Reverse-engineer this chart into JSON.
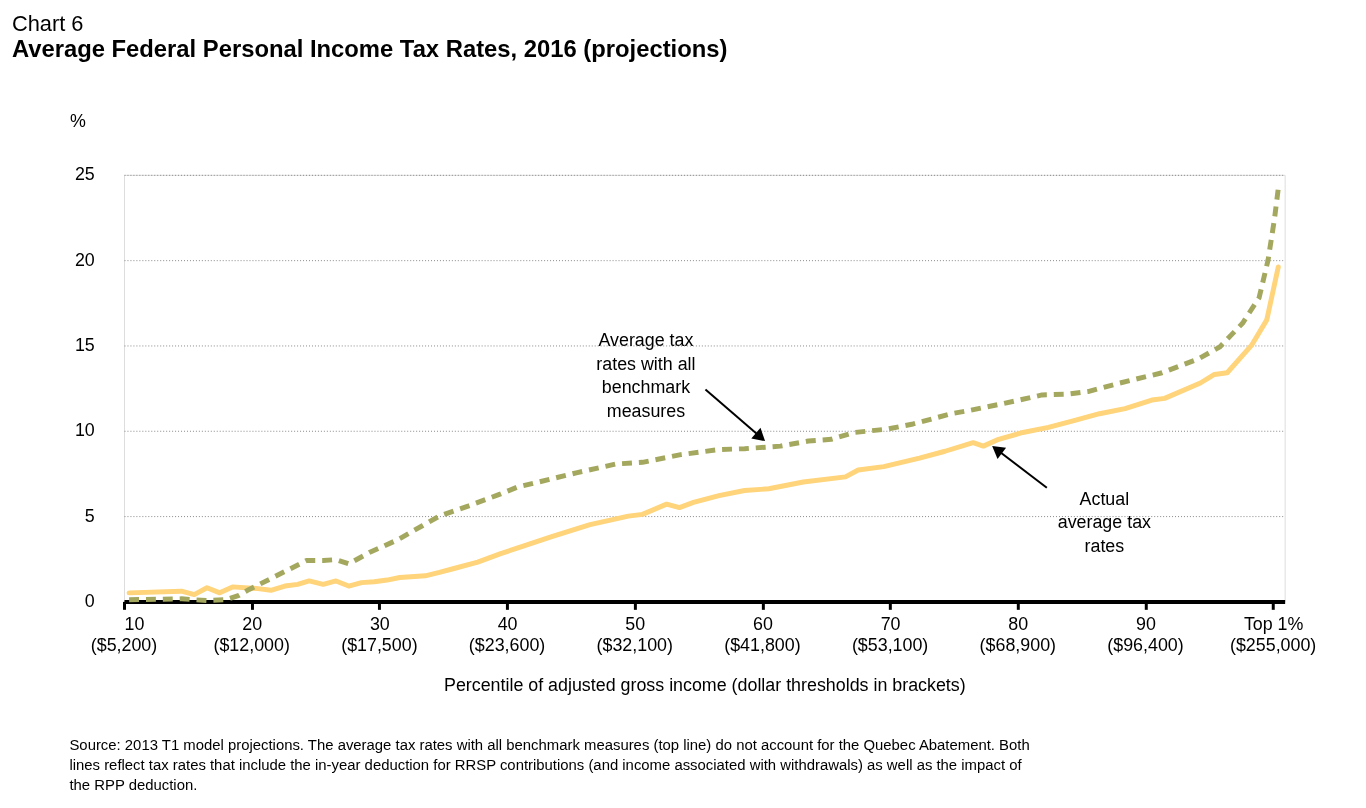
{
  "chart_data": {
    "type": "line",
    "title": "Chart 6",
    "subtitle": "Average Federal Personal Income Tax Rates, 2016 (projections)",
    "xlabel": "Percentile of adjusted gross income (dollar thresholds in brackets)",
    "ylabel": "%",
    "xlim": [
      10,
      100.9
    ],
    "xticks": [
      10,
      20,
      30,
      40,
      50,
      60,
      70,
      80,
      90,
      {
        "value": 100,
        "label": "Top 1%"
      }
    ],
    "ylim": [
      0,
      25
    ],
    "yticks": [
      0,
      5,
      10,
      15,
      20,
      25
    ],
    "grid": "y",
    "series": [
      {
        "color": "#ffd47a",
        "line_style": "solid",
        "x": [
          10.4,
          14.5,
          15.5,
          16.5,
          17.5,
          18.5,
          20.5,
          21.5,
          22.6,
          23.6,
          24.5,
          25.6,
          26.6,
          27.6,
          28.6,
          29.6,
          30.6,
          31.6,
          33.6,
          34.7,
          35.7,
          37.7,
          39.5,
          41.5,
          43.5,
          46.5,
          49.5,
          50.6,
          52.5,
          53.5,
          54.6,
          56.6,
          58.6,
          60.5,
          63.2,
          66.5,
          67.5,
          69.5,
          72.3,
          74.3,
          76.5,
          77.3,
          78.5,
          80.4,
          82.4,
          84.4,
          86.4,
          88.4,
          90.5,
          91.5,
          94.3,
          95.4,
          96.4,
          98.3,
          99.5,
          100.4
        ],
        "values": [
          0.5,
          0.6,
          0.4,
          0.8,
          0.5,
          0.85,
          0.75,
          0.65,
          0.9,
          1.0,
          1.2,
          1.0,
          1.2,
          0.9,
          1.1,
          1.15,
          1.25,
          1.4,
          1.5,
          1.7,
          1.9,
          2.3,
          2.8,
          3.3,
          3.8,
          4.5,
          5.0,
          5.1,
          5.7,
          5.5,
          5.8,
          6.2,
          6.5,
          6.6,
          7.0,
          7.3,
          7.7,
          7.9,
          8.4,
          8.8,
          9.3,
          9.1,
          9.5,
          9.9,
          10.2,
          10.6,
          11.0,
          11.3,
          11.8,
          11.9,
          12.8,
          13.3,
          13.4,
          15.0,
          16.5,
          19.6
        ]
      },
      {
        "color": "#a4a85e",
        "line_style": "dashed",
        "x": [
          10.4,
          14.5,
          16.5,
          18,
          19,
          19.8,
          21.8,
          24.3,
          25.6,
          26.6,
          27.6,
          29.3,
          31.4,
          33.4,
          34.7,
          37,
          39.5,
          40.8,
          42.5,
          45.5,
          48.5,
          50.6,
          53.6,
          56.6,
          58.6,
          61.4,
          63.6,
          65.4,
          67.2,
          69.8,
          71.8,
          74.8,
          76.3,
          78.9,
          81.9,
          83.9,
          85.5,
          88,
          91.3,
          94.1,
          95.8,
          97.6,
          98.9,
          99.6,
          100.1,
          100.4
        ],
        "values": [
          0.1,
          0.15,
          0.05,
          0.1,
          0.35,
          0.7,
          1.45,
          2.4,
          2.4,
          2.45,
          2.2,
          2.9,
          3.6,
          4.45,
          5.0,
          5.6,
          6.3,
          6.7,
          7.0,
          7.55,
          8.05,
          8.15,
          8.6,
          8.9,
          8.95,
          9.1,
          9.4,
          9.5,
          9.9,
          10.1,
          10.4,
          11.0,
          11.2,
          11.6,
          12.1,
          12.15,
          12.3,
          12.8,
          13.4,
          14.2,
          14.9,
          16.3,
          17.8,
          20.0,
          22.4,
          24.2
        ]
      }
    ],
    "annotations": [
      {
        "text": "Average tax\nrates with all\nbenchmark\nmeasures",
        "x": 60.2,
        "y": 9.4
      },
      {
        "text": "Actual\naverage tax\nrates",
        "x": 78,
        "y": 9.1
      },
      "($5,200)",
      "($12,000)",
      "($17,500)",
      "($23,600)",
      "($32,100)",
      "($41,800)",
      "($53,100)",
      "($68,900)",
      "($96,400)",
      "($255,000)",
      "Source: 2013 T1 model projections. The average tax rates with all benchmark measures (top line) do not account for the Quebec Abatement. Both\nlines reflect tax rates that include the in-year deduction for RRSP contributions (and income associated with withdrawals) as well as the impact of\nthe RPP deduction."
    ]
  }
}
